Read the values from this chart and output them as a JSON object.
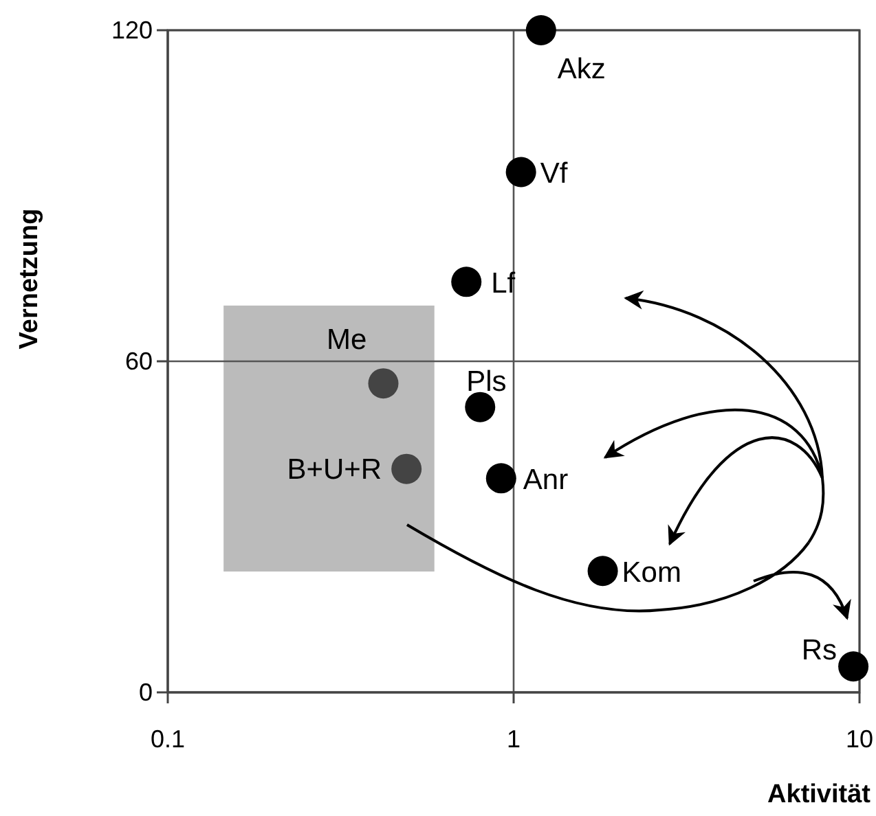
{
  "chart_data": {
    "type": "scatter",
    "xlabel": "Aktivität",
    "ylabel": "Vernetzung",
    "log": "x",
    "xlim": [
      0.1,
      10
    ],
    "xticks": [
      0.1,
      1,
      10
    ],
    "ylim": [
      0,
      120
    ],
    "yticks": [
      0,
      60,
      120
    ],
    "grid": true,
    "marker": "circle",
    "x": [
      1.2,
      1.05,
      0.73,
      0.42,
      0.8,
      0.49,
      0.92,
      1.81,
      9.6
    ],
    "values": [
      120,
      94.3,
      74.4,
      56,
      51.7,
      40.5,
      38.8,
      22,
      4.7
    ],
    "colors": [
      "#000000",
      "#000000",
      "#000000",
      "#444444",
      "#000000",
      "#444444",
      "#000000",
      "#000000",
      "#000000"
    ],
    "annotations": [
      {
        "text": "Akz",
        "x": 1.2,
        "y": 120
      },
      {
        "text": "Vf",
        "x": 1.05,
        "y": 94.3
      },
      {
        "text": "Lf",
        "x": 0.73,
        "y": 74.4
      },
      {
        "text": "Me",
        "x": 0.42,
        "y": 56
      },
      {
        "text": "Pls",
        "x": 0.8,
        "y": 51.7
      },
      {
        "text": "B+U+R",
        "x": 0.49,
        "y": 40.5
      },
      {
        "text": "Anr",
        "x": 0.92,
        "y": 38.8
      },
      {
        "text": "Kom",
        "x": 1.81,
        "y": 22
      },
      {
        "text": "Rs",
        "x": 9.6,
        "y": 4.7
      }
    ]
  }
}
